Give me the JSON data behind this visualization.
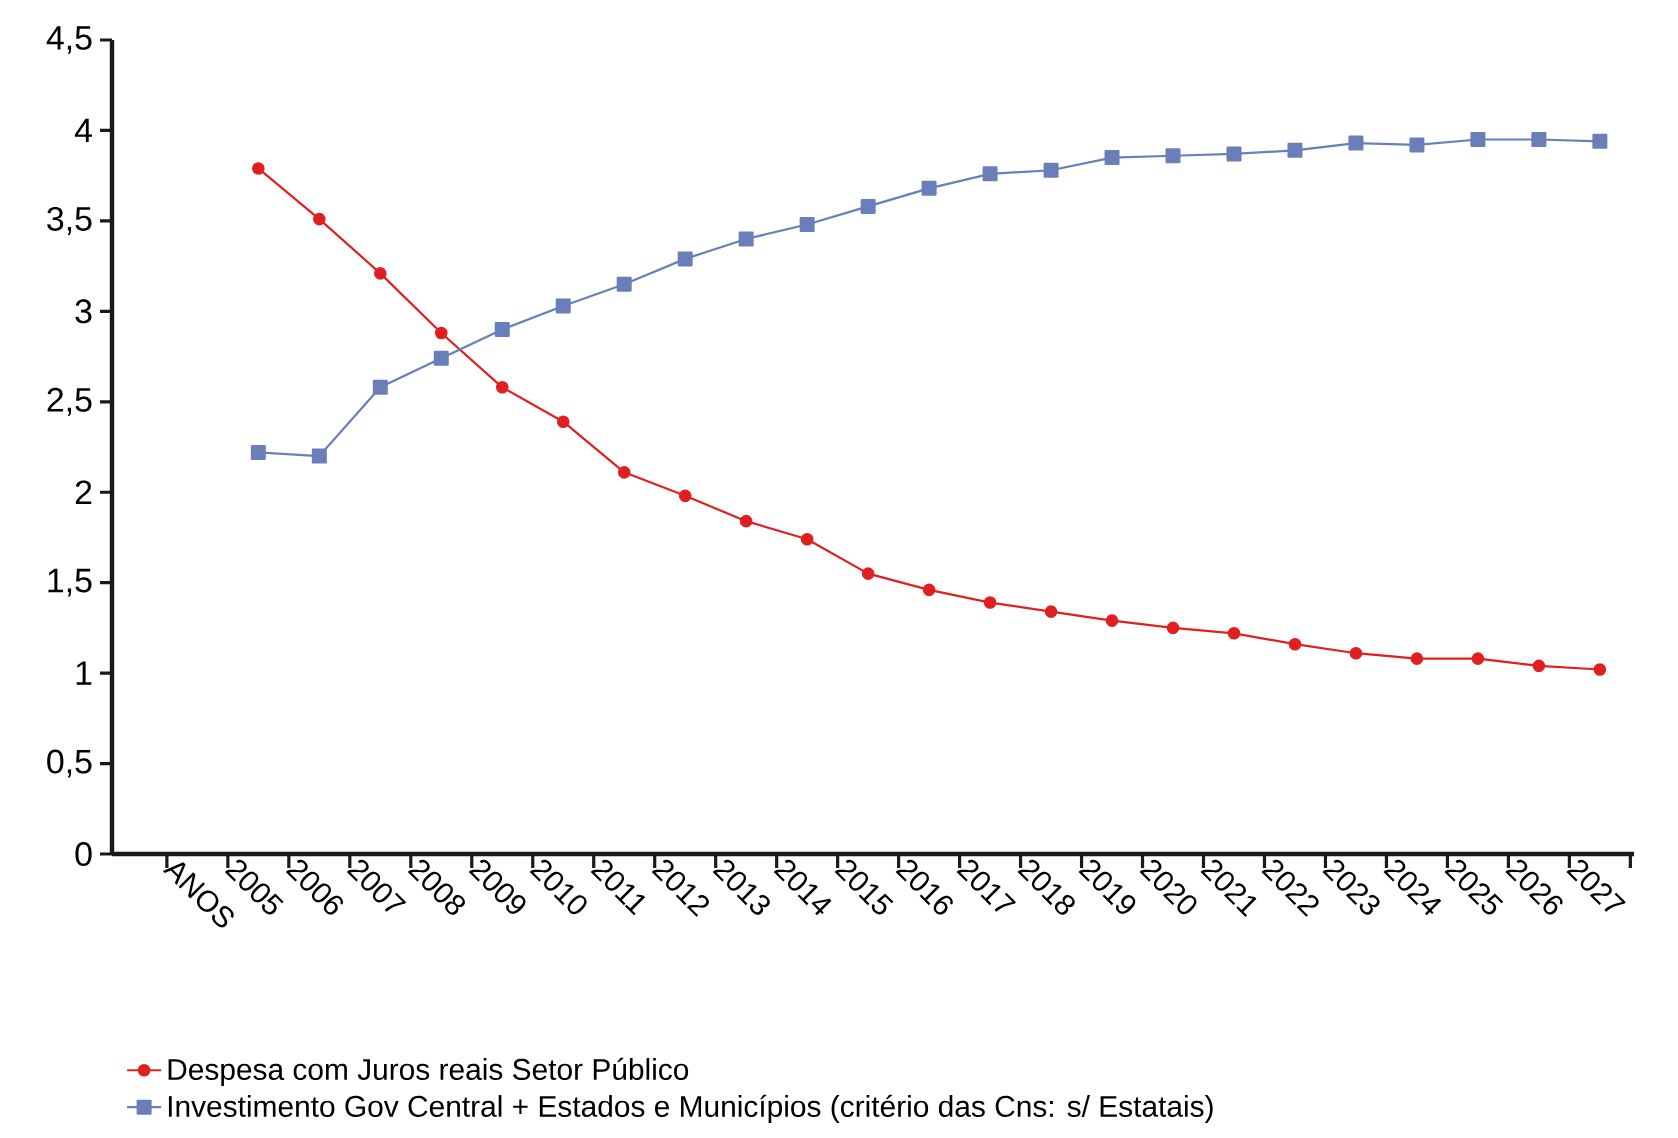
{
  "chart_data": {
    "type": "line",
    "categories": [
      "ANOS",
      "2005",
      "2006",
      "2007",
      "2008",
      "2009",
      "2010",
      "2011",
      "2012",
      "2013",
      "2014",
      "2015",
      "2016",
      "2017",
      "2018",
      "2019",
      "2020",
      "2021",
      "2022",
      "2023",
      "2024",
      "2025",
      "2026",
      "2027"
    ],
    "ylim": [
      0,
      4.5
    ],
    "yticks": [
      0,
      {
        "value": 0.5,
        "label": "0,5"
      },
      1,
      {
        "value": 1.5,
        "label": "1,5"
      },
      2,
      {
        "value": 2.5,
        "label": "2,5"
      },
      3,
      {
        "value": 3.5,
        "label": "3,5"
      },
      4,
      {
        "value": 4.5,
        "label": "4,5"
      }
    ],
    "grid": false,
    "legend": "bottom",
    "series": [
      {
        "name": "Despesa com Juros reais Setor Público",
        "color": "#e02020",
        "marker": "circle",
        "values": [
          null,
          3.79,
          3.51,
          3.21,
          2.88,
          2.58,
          2.39,
          2.11,
          1.98,
          1.84,
          1.74,
          1.55,
          1.46,
          1.39,
          1.34,
          1.29,
          1.25,
          1.22,
          1.16,
          1.11,
          1.08,
          1.08,
          1.04,
          1.02
        ]
      },
      {
        "name": "Investimento Gov Central + Estados e Municípios (critério das Cns: s/ Estatais)",
        "color": "#6a7fba",
        "marker": "square",
        "values": [
          null,
          2.22,
          2.2,
          2.58,
          2.74,
          2.9,
          3.03,
          3.15,
          3.29,
          3.4,
          3.48,
          3.58,
          3.68,
          3.76,
          3.78,
          3.85,
          3.86,
          3.87,
          3.89,
          3.93,
          3.92,
          3.95,
          3.95,
          3.94
        ]
      }
    ]
  }
}
